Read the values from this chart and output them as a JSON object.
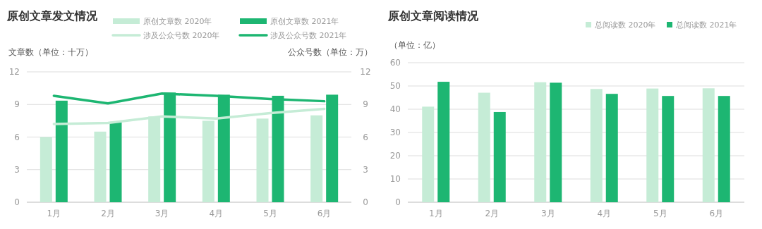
{
  "chart_data": [
    {
      "type": "bar",
      "title": "原创文章发文情况",
      "ylabel": "文章数（单位：十万）",
      "y2label": "公众号数（单位：万）",
      "categories": [
        "1月",
        "2月",
        "3月",
        "4月",
        "5月",
        "6月"
      ],
      "series": [
        {
          "name": "原创文章数 2020年",
          "color": "#c5ecd6",
          "values": [
            6.0,
            6.5,
            7.9,
            7.5,
            7.7,
            8.0
          ]
        },
        {
          "name": "原创文章数 2021年",
          "color": "#1db672",
          "values": [
            9.35,
            7.4,
            10.1,
            9.9,
            9.8,
            9.9
          ]
        },
        {
          "name": "涉及公众号数 2020年",
          "type": "line",
          "axis": "y2",
          "color": "#c5ecd6",
          "values": [
            7.2,
            7.3,
            7.9,
            7.7,
            8.2,
            8.6
          ]
        },
        {
          "name": "涉及公众号数 2021年",
          "type": "line",
          "axis": "y2",
          "color": "#1db672",
          "values": [
            9.8,
            9.1,
            10.0,
            9.8,
            9.5,
            9.3
          ]
        }
      ],
      "ylim": [
        0,
        12
      ],
      "yticks": [
        0,
        3,
        6,
        9,
        12
      ],
      "y2lim": [
        0,
        12
      ],
      "y2ticks": [
        0,
        3,
        6,
        9,
        12
      ],
      "grid": "y",
      "legend": "top right",
      "marker": "none"
    },
    {
      "type": "bar",
      "title": "原创文章阅读情况",
      "ylabel": "（单位：亿）",
      "categories": [
        "1月",
        "2月",
        "3月",
        "4月",
        "5月",
        "6月"
      ],
      "series": [
        {
          "name": "总阅读数 2020年",
          "color": "#c5ecd6",
          "values": [
            41.1,
            47.1,
            51.6,
            48.7,
            48.9,
            49.0
          ]
        },
        {
          "name": "总阅读数 2021年",
          "color": "#1db672",
          "values": [
            51.8,
            38.8,
            51.4,
            46.6,
            45.7,
            45.7
          ]
        }
      ],
      "ylim": [
        0,
        60
      ],
      "yticks": [
        0,
        10,
        20,
        30,
        40,
        50,
        60
      ],
      "grid": "y",
      "legend": "top right"
    }
  ]
}
